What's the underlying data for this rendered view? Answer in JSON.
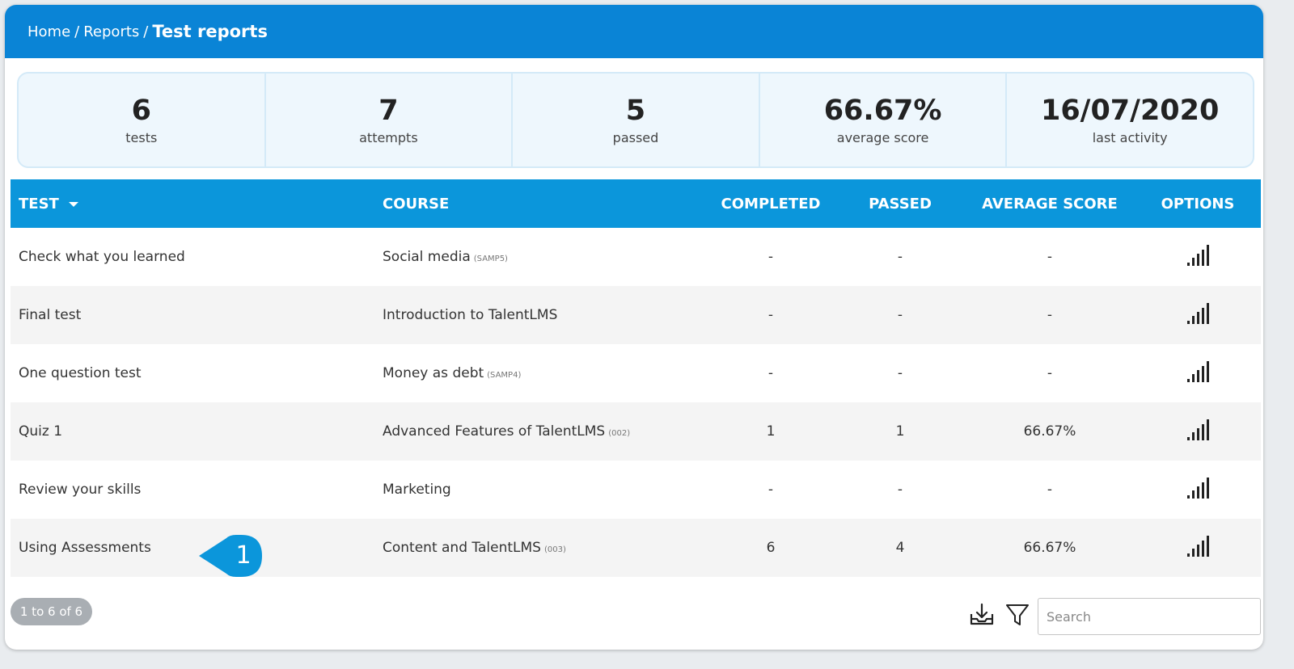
{
  "breadcrumb": {
    "home": "Home",
    "reports": "Reports",
    "current": "Test reports",
    "separator": "/"
  },
  "stats": [
    {
      "value": "6",
      "label": "tests"
    },
    {
      "value": "7",
      "label": "attempts"
    },
    {
      "value": "5",
      "label": "passed"
    },
    {
      "value": "66.67%",
      "label": "average score"
    },
    {
      "value": "16/07/2020",
      "label": "last activity"
    }
  ],
  "table": {
    "headers": {
      "test": "TEST",
      "course": "COURSE",
      "completed": "COMPLETED",
      "passed": "PASSED",
      "average_score": "AVERAGE SCORE",
      "options": "OPTIONS"
    },
    "rows": [
      {
        "test": "Check what you learned",
        "course": "Social media",
        "code": "(SAMP5)",
        "completed": "-",
        "passed": "-",
        "average": "-"
      },
      {
        "test": "Final test",
        "course": "Introduction to TalentLMS",
        "code": "",
        "completed": "-",
        "passed": "-",
        "average": "-"
      },
      {
        "test": "One question test",
        "course": "Money as debt",
        "code": "(SAMP4)",
        "completed": "-",
        "passed": "-",
        "average": "-"
      },
      {
        "test": "Quiz 1",
        "course": "Advanced Features of TalentLMS",
        "code": "(002)",
        "completed": "1",
        "passed": "1",
        "average": "66.67%"
      },
      {
        "test": "Review your skills",
        "course": "Marketing",
        "code": "",
        "completed": "-",
        "passed": "-",
        "average": "-"
      },
      {
        "test": "Using Assessments",
        "course": "Content and TalentLMS",
        "code": "(003)",
        "completed": "6",
        "passed": "4",
        "average": "66.67%"
      }
    ]
  },
  "callout": {
    "number": "1",
    "color": "#0b96db"
  },
  "pagination": {
    "text": "1 to 6 of 6"
  },
  "search": {
    "placeholder": "Search"
  },
  "colors": {
    "header_bar": "#0a84d6",
    "table_header": "#0b96db",
    "stats_bg": "#eef7fd"
  }
}
